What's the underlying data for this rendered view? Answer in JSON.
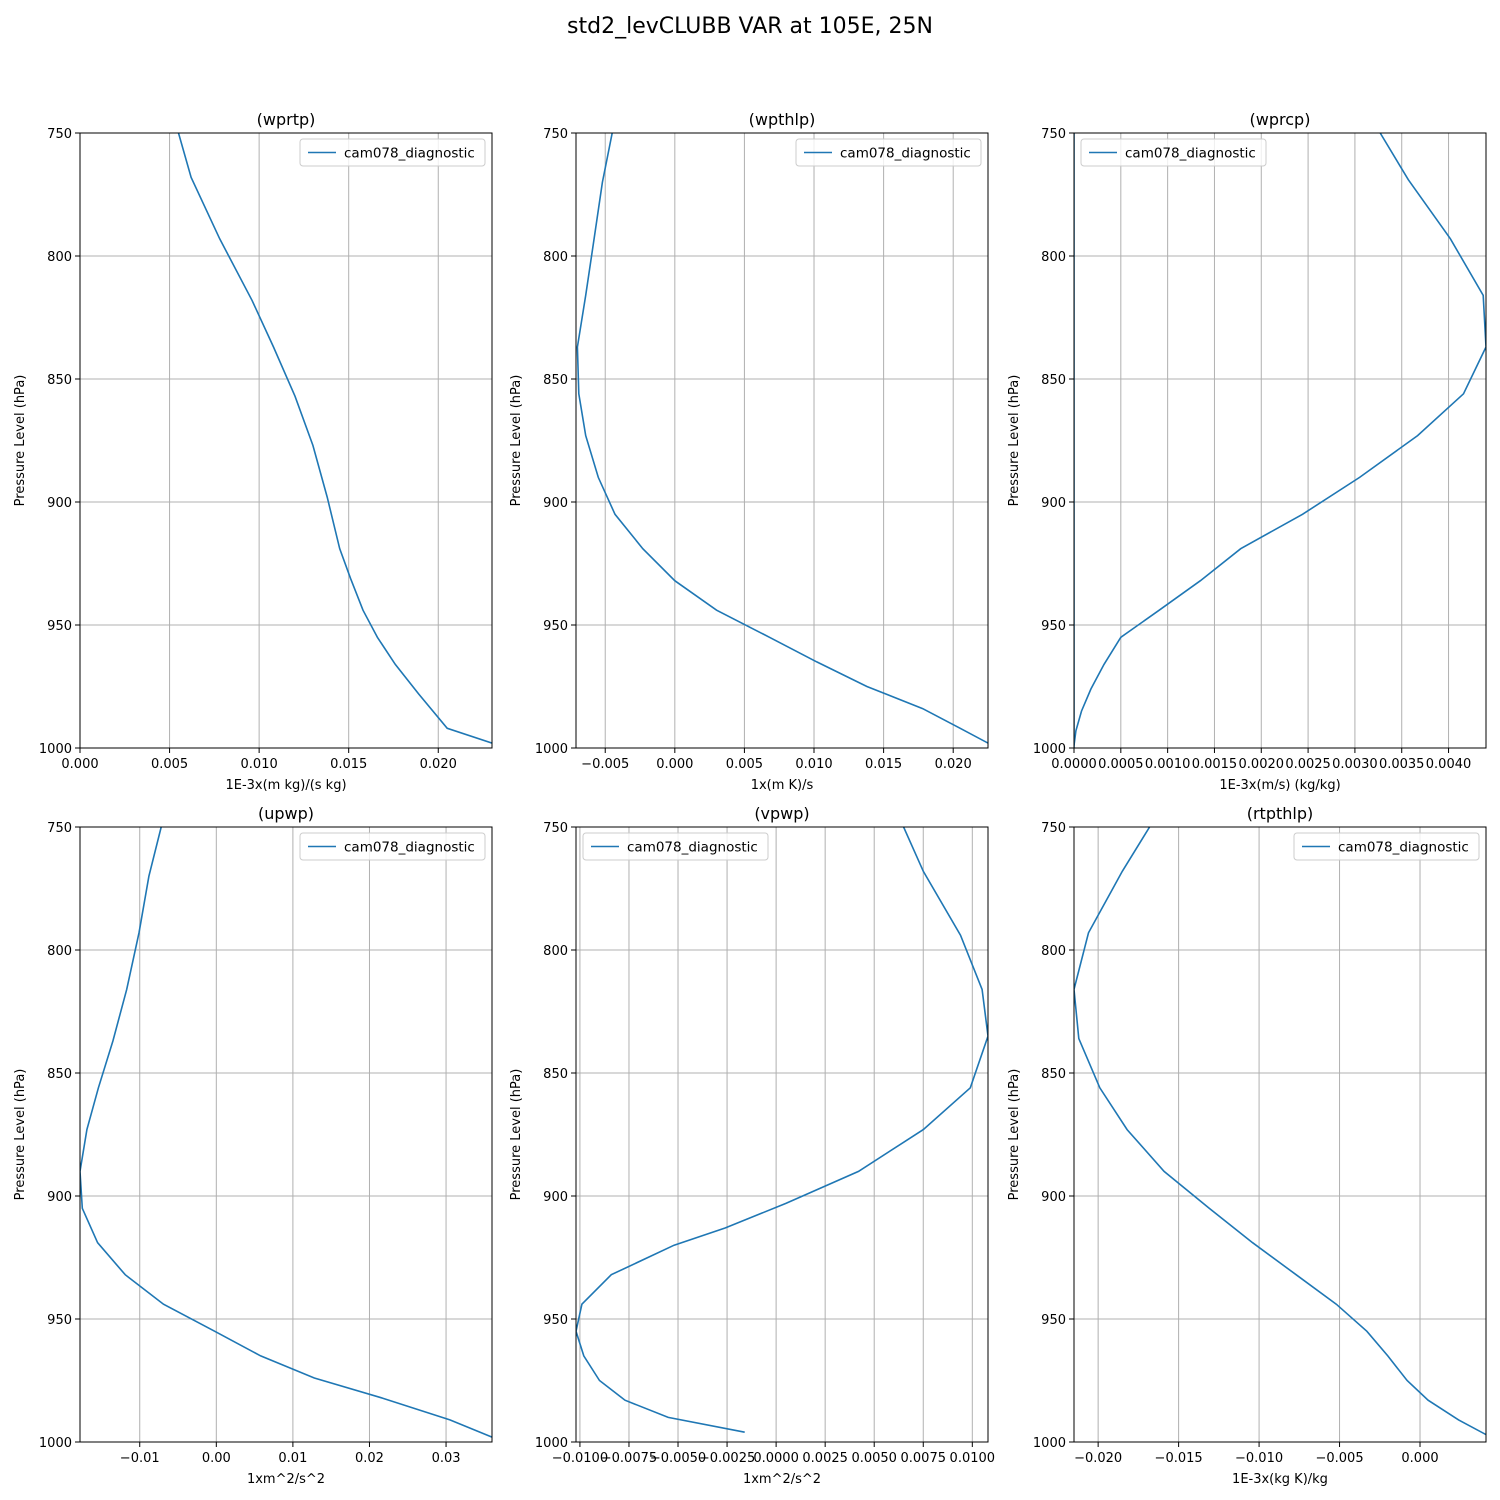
{
  "figure": {
    "title": "std2_levCLUBB VAR at 105E, 25N"
  },
  "style": {
    "line_color": "#1f77b4",
    "grid_color": "#b0b0b0"
  },
  "chart_data": [
    {
      "type": "line",
      "title": "(wprtp)",
      "xlabel": "1E-3x(m kg)/(s kg)",
      "ylabel": "Pressure Level (hPa)",
      "xlim": [
        0.0,
        0.023
      ],
      "ylim": [
        1000,
        750
      ],
      "y_inverted": true,
      "grid": true,
      "legend": "upper right",
      "xticks": [
        0.0,
        0.005,
        0.01,
        0.015,
        0.02
      ],
      "xtick_labels": [
        "0.000",
        "0.005",
        "0.010",
        "0.015",
        "0.020"
      ],
      "yticks": [
        750,
        800,
        850,
        900,
        950,
        1000
      ],
      "ytick_labels": [
        "750",
        "800",
        "850",
        "900",
        "950",
        "1000"
      ],
      "series": [
        {
          "name": "cam078_diagnostic",
          "x": [
            0.0055,
            0.0062,
            0.0078,
            0.0096,
            0.0108,
            0.012,
            0.013,
            0.0138,
            0.0145,
            0.0151,
            0.0158,
            0.0166,
            0.0176,
            0.0189,
            0.0205,
            0.023
          ],
          "y": [
            750,
            768,
            793,
            818,
            837,
            857,
            877,
            898,
            919,
            931,
            944,
            955,
            966,
            978,
            992,
            998
          ]
        }
      ]
    },
    {
      "type": "line",
      "title": "(wpthlp)",
      "xlabel": "1x(m K)/s",
      "ylabel": "Pressure Level (hPa)",
      "xlim": [
        -0.0071,
        0.0225
      ],
      "ylim": [
        1000,
        750
      ],
      "y_inverted": true,
      "grid": true,
      "legend": "upper right",
      "xticks": [
        -0.005,
        0.0,
        0.005,
        0.01,
        0.015,
        0.02
      ],
      "xtick_labels": [
        "−0.005",
        "0.000",
        "0.005",
        "0.010",
        "0.015",
        "0.020"
      ],
      "yticks": [
        750,
        800,
        850,
        900,
        950,
        1000
      ],
      "ytick_labels": [
        "750",
        "800",
        "850",
        "900",
        "950",
        "1000"
      ],
      "series": [
        {
          "name": "cam078_diagnostic",
          "x": [
            -0.0045,
            -0.0052,
            -0.0058,
            -0.0064,
            -0.007,
            -0.0069,
            -0.0064,
            -0.0055,
            -0.0043,
            -0.0023,
            0.0,
            0.003,
            0.0068,
            0.0102,
            0.0138,
            0.0178,
            0.0205,
            0.0225
          ],
          "y": [
            750,
            770,
            793,
            816,
            837,
            856,
            873,
            890,
            905,
            919,
            932,
            944,
            955,
            965,
            975,
            984,
            992,
            998
          ]
        }
      ]
    },
    {
      "type": "line",
      "title": "(wprcp)",
      "xlabel": "1E-3x(m/s) (kg/kg)",
      "ylabel": "Pressure Level (hPa)",
      "xlim": [
        0.0,
        0.0044
      ],
      "ylim": [
        1000,
        750
      ],
      "y_inverted": true,
      "grid": true,
      "legend": "upper left",
      "xticks": [
        0.0,
        0.0005,
        0.001,
        0.0015,
        0.002,
        0.0025,
        0.003,
        0.0035,
        0.004
      ],
      "xtick_labels": [
        "0.0000",
        "0.0005",
        "0.0010",
        "0.0015",
        "0.0020",
        "0.0025",
        "0.0030",
        "0.0035",
        "0.0040"
      ],
      "yticks": [
        750,
        800,
        850,
        900,
        950,
        1000
      ],
      "ytick_labels": [
        "750",
        "800",
        "850",
        "900",
        "950",
        "1000"
      ],
      "series": [
        {
          "name": "cam078_diagnostic",
          "x": [
            0.00327,
            0.00357,
            0.00402,
            0.00437,
            0.0044,
            0.00416,
            0.00367,
            0.00305,
            0.00244,
            0.00178,
            0.00135,
            0.00091,
            0.0005,
            0.00032,
            0.00018,
            8e-05,
            2e-05,
            0.0
          ],
          "y": [
            750,
            769,
            793,
            816,
            837,
            856,
            873,
            890,
            905,
            919,
            932,
            944,
            955,
            966,
            976,
            985,
            993,
            999
          ]
        },
        {
          "name": "",
          "x": [
            0.0,
            0.0
          ],
          "y": [
            750,
            1000
          ]
        }
      ]
    },
    {
      "type": "line",
      "title": "(upwp)",
      "xlabel": "1xm^2/s^2",
      "ylabel": "Pressure Level (hPa)",
      "xlim": [
        -0.0178,
        0.036
      ],
      "ylim": [
        1000,
        750
      ],
      "y_inverted": true,
      "grid": true,
      "legend": "upper right",
      "xticks": [
        -0.01,
        0.0,
        0.01,
        0.02,
        0.03
      ],
      "xtick_labels": [
        "−0.01",
        "0.00",
        "0.01",
        "0.02",
        "0.03"
      ],
      "yticks": [
        750,
        800,
        850,
        900,
        950,
        1000
      ],
      "ytick_labels": [
        "750",
        "800",
        "850",
        "900",
        "950",
        "1000"
      ],
      "series": [
        {
          "name": "cam078_diagnostic",
          "x": [
            -0.0072,
            -0.0088,
            -0.0101,
            -0.0117,
            -0.0135,
            -0.0154,
            -0.0169,
            -0.0178,
            -0.0175,
            -0.0155,
            -0.0119,
            -0.0069,
            -0.0002,
            0.0058,
            0.0128,
            0.0215,
            0.0305,
            0.036
          ],
          "y": [
            750,
            770,
            793,
            816,
            837,
            856,
            873,
            890,
            905,
            919,
            932,
            944,
            955,
            965,
            974,
            982,
            991,
            998
          ]
        }
      ]
    },
    {
      "type": "line",
      "title": "(vpwp)",
      "xlabel": "1xm^2/s^2",
      "ylabel": "Pressure Level (hPa)",
      "xlim": [
        -0.0102,
        0.0108
      ],
      "ylim": [
        1000,
        750
      ],
      "y_inverted": true,
      "grid": true,
      "legend": "upper left",
      "xticks": [
        -0.01,
        -0.0075,
        -0.005,
        -0.0025,
        0.0,
        0.0025,
        0.005,
        0.0075,
        0.01
      ],
      "xtick_labels": [
        "−0.0100",
        "−0.0075",
        "−0.0050",
        "−0.0025",
        "0.0000",
        "0.0025",
        "0.0050",
        "0.0075",
        "0.0100"
      ],
      "yticks": [
        750,
        800,
        850,
        900,
        950,
        1000
      ],
      "ytick_labels": [
        "750",
        "800",
        "850",
        "900",
        "950",
        "1000"
      ],
      "series": [
        {
          "name": "cam078_diagnostic",
          "x": [
            0.0065,
            0.0075,
            0.0094,
            0.0105,
            0.0108,
            0.0099,
            0.0075,
            0.0042,
            0.0005,
            -0.0026,
            -0.0052,
            -0.0084,
            -0.0099,
            -0.0102,
            -0.0098,
            -0.009,
            -0.0077,
            -0.0055,
            -0.0016
          ],
          "y": [
            750,
            768,
            794,
            816,
            835,
            856,
            873,
            890,
            903,
            913,
            920,
            932,
            944,
            955,
            965,
            975,
            983,
            990,
            996
          ]
        }
      ]
    },
    {
      "type": "line",
      "title": "(rtpthlp)",
      "xlabel": "1E-3x(kg K)/kg",
      "ylabel": "Pressure Level (hPa)",
      "xlim": [
        -0.0215,
        0.0041
      ],
      "ylim": [
        1000,
        750
      ],
      "y_inverted": true,
      "grid": true,
      "legend": "upper right",
      "xticks": [
        -0.02,
        -0.015,
        -0.01,
        -0.005,
        0.0
      ],
      "xtick_labels": [
        "−0.020",
        "−0.015",
        "−0.010",
        "−0.005",
        "0.000"
      ],
      "yticks": [
        750,
        800,
        850,
        900,
        950,
        1000
      ],
      "ytick_labels": [
        "750",
        "800",
        "850",
        "900",
        "950",
        "1000"
      ],
      "series": [
        {
          "name": "cam078_diagnostic",
          "x": [
            -0.0168,
            -0.0185,
            -0.0206,
            -0.0215,
            -0.0212,
            -0.0199,
            -0.0182,
            -0.0159,
            -0.0131,
            -0.0104,
            -0.0077,
            -0.0052,
            -0.0033,
            -0.002,
            -0.0008,
            0.0005,
            0.0024,
            0.0041
          ],
          "y": [
            750,
            768,
            793,
            816,
            836,
            856,
            873,
            890,
            905,
            919,
            932,
            944,
            955,
            965,
            975,
            983,
            991,
            997
          ]
        }
      ]
    }
  ]
}
